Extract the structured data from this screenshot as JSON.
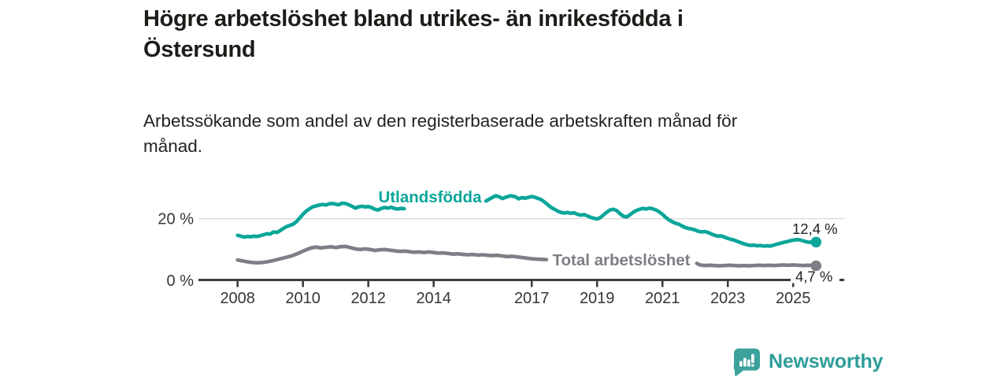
{
  "header": {
    "title_line1": "Högre arbetslöshet bland utrikes- än inrikesfödda i",
    "title_line2": "Östersund",
    "subtitle_line1": "Arbetssökande som andel av den registerbaserade arbetskraften månad för",
    "subtitle_line2": "månad."
  },
  "footer": {
    "brand": "Newsworthy",
    "brand_color": "#2e9d98",
    "logo_icon": "bar-chart-speech-bubble-icon"
  },
  "colors": {
    "foreign_born_line": "#0ba69a",
    "total_line": "#7e7e86",
    "axis": "#3c3c42",
    "gridline": "#dbdbdb",
    "value_label": "#232323"
  },
  "chart_data": {
    "type": "line",
    "title": "Högre arbetslöshet bland utrikes- än inrikesfödda i Östersund",
    "subtitle": "Arbetssökande som andel av den registerbaserade arbetskraften månad för månad.",
    "unit": "%",
    "grid": "horizontal-at-20-only",
    "legend_position": "inline-labels-on-lines",
    "x_axis": {
      "tick_labels": [
        "2008",
        "2010",
        "2012",
        "2014",
        "2017",
        "2019",
        "2021",
        "2023",
        "2025"
      ],
      "tick_years": [
        2008,
        2010,
        2012,
        2014,
        2017,
        2019,
        2021,
        2023,
        2025
      ],
      "range_years": [
        2007.8,
        2025.9
      ]
    },
    "y_axis": {
      "tick_labels": [
        "0 %",
        "20 %"
      ],
      "tick_values": [
        0,
        20
      ],
      "gridline_at": 20,
      "range": [
        0,
        30
      ]
    },
    "series": [
      {
        "name": "Utlandsfödda",
        "color": "#0ba69a",
        "end_label": "12,4 %",
        "end_value": 12.4,
        "end_year": 2025.7,
        "segments": [
          [
            [
              2008.0,
              14.6
            ],
            [
              2008.1,
              14.3
            ],
            [
              2008.2,
              14.0
            ],
            [
              2008.3,
              14.2
            ],
            [
              2008.4,
              14.1
            ],
            [
              2008.5,
              14.3
            ],
            [
              2008.6,
              14.2
            ],
            [
              2008.7,
              14.5
            ],
            [
              2008.8,
              14.8
            ],
            [
              2008.9,
              15.1
            ],
            [
              2009.0,
              15.0
            ],
            [
              2009.1,
              15.7
            ],
            [
              2009.2,
              15.5
            ],
            [
              2009.3,
              16.1
            ],
            [
              2009.4,
              16.8
            ],
            [
              2009.5,
              17.4
            ],
            [
              2009.6,
              17.8
            ],
            [
              2009.7,
              18.2
            ],
            [
              2009.8,
              19.0
            ],
            [
              2009.9,
              20.2
            ],
            [
              2010.0,
              21.4
            ],
            [
              2010.1,
              22.4
            ],
            [
              2010.2,
              23.2
            ],
            [
              2010.3,
              23.8
            ],
            [
              2010.4,
              24.1
            ],
            [
              2010.5,
              24.4
            ],
            [
              2010.6,
              24.6
            ],
            [
              2010.7,
              24.4
            ],
            [
              2010.8,
              24.8
            ],
            [
              2010.9,
              24.9
            ],
            [
              2011.0,
              24.7
            ],
            [
              2011.1,
              24.5
            ],
            [
              2011.2,
              25.0
            ],
            [
              2011.3,
              24.9
            ],
            [
              2011.4,
              24.5
            ],
            [
              2011.5,
              24.0
            ],
            [
              2011.6,
              23.4
            ],
            [
              2011.7,
              23.8
            ],
            [
              2011.8,
              24.0
            ],
            [
              2011.9,
              23.8
            ],
            [
              2012.0,
              23.9
            ],
            [
              2012.1,
              23.6
            ],
            [
              2012.2,
              23.0
            ],
            [
              2012.3,
              22.8
            ],
            [
              2012.4,
              23.3
            ],
            [
              2012.5,
              23.6
            ],
            [
              2012.6,
              23.4
            ],
            [
              2012.7,
              23.7
            ],
            [
              2012.8,
              23.3
            ],
            [
              2012.9,
              23.1
            ],
            [
              2013.0,
              23.3
            ],
            [
              2013.1,
              23.2
            ]
          ],
          [
            [
              2015.6,
              25.7
            ],
            [
              2015.7,
              26.3
            ],
            [
              2015.8,
              26.9
            ],
            [
              2015.9,
              27.4
            ],
            [
              2016.0,
              27.1
            ],
            [
              2016.1,
              26.5
            ],
            [
              2016.2,
              26.9
            ],
            [
              2016.35,
              27.4
            ],
            [
              2016.5,
              27.1
            ],
            [
              2016.6,
              26.4
            ],
            [
              2016.7,
              26.8
            ],
            [
              2016.8,
              26.6
            ],
            [
              2016.9,
              26.9
            ],
            [
              2017.0,
              27.2
            ],
            [
              2017.1,
              26.9
            ],
            [
              2017.2,
              26.5
            ],
            [
              2017.3,
              26.1
            ],
            [
              2017.4,
              25.3
            ],
            [
              2017.5,
              24.4
            ],
            [
              2017.6,
              23.6
            ],
            [
              2017.7,
              23.0
            ],
            [
              2017.8,
              22.4
            ],
            [
              2017.9,
              22.0
            ],
            [
              2018.0,
              21.8
            ],
            [
              2018.1,
              22.0
            ],
            [
              2018.2,
              21.7
            ],
            [
              2018.3,
              21.9
            ],
            [
              2018.4,
              21.4
            ],
            [
              2018.5,
              21.1
            ],
            [
              2018.6,
              21.3
            ],
            [
              2018.7,
              20.9
            ],
            [
              2018.8,
              20.4
            ],
            [
              2018.9,
              20.1
            ],
            [
              2019.0,
              19.9
            ],
            [
              2019.1,
              20.3
            ],
            [
              2019.2,
              21.2
            ],
            [
              2019.3,
              22.1
            ],
            [
              2019.4,
              22.8
            ],
            [
              2019.5,
              23.0
            ],
            [
              2019.6,
              22.6
            ],
            [
              2019.7,
              21.6
            ],
            [
              2019.8,
              20.8
            ],
            [
              2019.9,
              20.5
            ],
            [
              2020.0,
              21.2
            ],
            [
              2020.1,
              22.0
            ],
            [
              2020.2,
              22.6
            ],
            [
              2020.3,
              23.0
            ],
            [
              2020.4,
              23.3
            ],
            [
              2020.5,
              23.1
            ],
            [
              2020.6,
              23.4
            ],
            [
              2020.7,
              23.2
            ],
            [
              2020.8,
              22.8
            ],
            [
              2020.9,
              22.2
            ],
            [
              2021.0,
              21.4
            ],
            [
              2021.1,
              20.4
            ],
            [
              2021.2,
              19.6
            ],
            [
              2021.3,
              19.0
            ],
            [
              2021.4,
              18.5
            ],
            [
              2021.5,
              18.2
            ],
            [
              2021.6,
              17.6
            ],
            [
              2021.7,
              17.1
            ],
            [
              2021.8,
              16.8
            ],
            [
              2021.9,
              16.6
            ],
            [
              2022.0,
              16.3
            ],
            [
              2022.1,
              15.9
            ],
            [
              2022.2,
              15.7
            ],
            [
              2022.3,
              15.8
            ],
            [
              2022.4,
              15.5
            ],
            [
              2022.5,
              15.0
            ],
            [
              2022.6,
              14.6
            ],
            [
              2022.7,
              14.3
            ],
            [
              2022.8,
              14.4
            ],
            [
              2022.9,
              14.0
            ],
            [
              2023.0,
              13.6
            ],
            [
              2023.1,
              13.3
            ],
            [
              2023.2,
              13.0
            ],
            [
              2023.3,
              12.6
            ],
            [
              2023.4,
              12.2
            ],
            [
              2023.5,
              11.8
            ],
            [
              2023.6,
              11.5
            ],
            [
              2023.7,
              11.3
            ],
            [
              2023.8,
              11.4
            ],
            [
              2023.9,
              11.2
            ],
            [
              2024.0,
              11.3
            ],
            [
              2024.1,
              11.1
            ],
            [
              2024.2,
              11.2
            ],
            [
              2024.3,
              11.1
            ],
            [
              2024.4,
              11.4
            ],
            [
              2024.5,
              11.7
            ],
            [
              2024.6,
              12.0
            ],
            [
              2024.7,
              12.3
            ],
            [
              2024.8,
              12.5
            ],
            [
              2024.9,
              12.8
            ],
            [
              2025.0,
              13.0
            ],
            [
              2025.1,
              13.2
            ],
            [
              2025.2,
              13.1
            ],
            [
              2025.3,
              12.8
            ],
            [
              2025.4,
              12.5
            ],
            [
              2025.5,
              12.3
            ],
            [
              2025.6,
              12.5
            ],
            [
              2025.7,
              12.4
            ]
          ]
        ]
      },
      {
        "name": "Total arbetslöshet",
        "color": "#7e7e86",
        "end_label": "4,7 %",
        "end_value": 4.7,
        "end_year": 2025.7,
        "segments": [
          [
            [
              2008.0,
              6.6
            ],
            [
              2008.15,
              6.3
            ],
            [
              2008.3,
              6.0
            ],
            [
              2008.45,
              5.8
            ],
            [
              2008.6,
              5.7
            ],
            [
              2008.75,
              5.8
            ],
            [
              2008.9,
              6.0
            ],
            [
              2009.05,
              6.3
            ],
            [
              2009.2,
              6.7
            ],
            [
              2009.35,
              7.1
            ],
            [
              2009.5,
              7.5
            ],
            [
              2009.65,
              7.9
            ],
            [
              2009.8,
              8.5
            ],
            [
              2009.95,
              9.2
            ],
            [
              2010.1,
              9.9
            ],
            [
              2010.25,
              10.5
            ],
            [
              2010.4,
              10.8
            ],
            [
              2010.55,
              10.5
            ],
            [
              2010.7,
              10.7
            ],
            [
              2010.85,
              10.9
            ],
            [
              2011.0,
              10.6
            ],
            [
              2011.15,
              10.9
            ],
            [
              2011.3,
              11.0
            ],
            [
              2011.45,
              10.6
            ],
            [
              2011.6,
              10.2
            ],
            [
              2011.75,
              10.0
            ],
            [
              2011.9,
              10.2
            ],
            [
              2012.05,
              10.0
            ],
            [
              2012.2,
              9.7
            ],
            [
              2012.35,
              9.9
            ],
            [
              2012.5,
              10.0
            ],
            [
              2012.65,
              9.8
            ],
            [
              2012.8,
              9.6
            ],
            [
              2012.95,
              9.4
            ],
            [
              2013.1,
              9.5
            ],
            [
              2013.25,
              9.3
            ],
            [
              2013.4,
              9.1
            ],
            [
              2013.55,
              9.2
            ],
            [
              2013.7,
              9.0
            ],
            [
              2013.85,
              9.2
            ],
            [
              2014.0,
              9.0
            ],
            [
              2014.15,
              8.8
            ],
            [
              2014.3,
              8.9
            ],
            [
              2014.45,
              8.7
            ],
            [
              2014.6,
              8.5
            ],
            [
              2014.75,
              8.6
            ],
            [
              2014.9,
              8.4
            ],
            [
              2015.05,
              8.3
            ],
            [
              2015.2,
              8.4
            ],
            [
              2015.35,
              8.2
            ],
            [
              2015.5,
              8.3
            ],
            [
              2015.65,
              8.1
            ],
            [
              2015.8,
              8.0
            ],
            [
              2015.95,
              8.1
            ],
            [
              2016.1,
              7.9
            ],
            [
              2016.25,
              7.7
            ],
            [
              2016.4,
              7.8
            ],
            [
              2016.55,
              7.6
            ],
            [
              2016.7,
              7.4
            ],
            [
              2016.85,
              7.2
            ],
            [
              2017.0,
              7.0
            ],
            [
              2017.15,
              6.9
            ],
            [
              2017.3,
              6.8
            ],
            [
              2017.45,
              6.7
            ]
          ],
          [
            [
              2022.05,
              5.5
            ],
            [
              2022.15,
              5.0
            ],
            [
              2022.3,
              4.8
            ],
            [
              2022.45,
              4.9
            ],
            [
              2022.6,
              4.8
            ],
            [
              2022.75,
              4.7
            ],
            [
              2022.9,
              4.8
            ],
            [
              2023.05,
              4.9
            ],
            [
              2023.2,
              4.8
            ],
            [
              2023.35,
              4.7
            ],
            [
              2023.5,
              4.8
            ],
            [
              2023.65,
              4.7
            ],
            [
              2023.8,
              4.8
            ],
            [
              2023.95,
              4.9
            ],
            [
              2024.1,
              4.8
            ],
            [
              2024.25,
              4.9
            ],
            [
              2024.4,
              4.8
            ],
            [
              2024.55,
              4.9
            ],
            [
              2024.7,
              5.0
            ],
            [
              2024.85,
              4.9
            ],
            [
              2025.0,
              5.0
            ],
            [
              2025.15,
              4.9
            ],
            [
              2025.3,
              4.8
            ],
            [
              2025.45,
              4.9
            ],
            [
              2025.6,
              4.8
            ],
            [
              2025.7,
              4.7
            ]
          ]
        ]
      }
    ]
  }
}
